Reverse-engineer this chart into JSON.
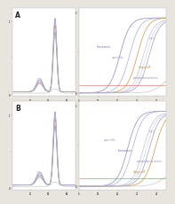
{
  "panel_A_label": "A",
  "panel_B_label": "B",
  "background_color": "#e8e4de",
  "plot_bg_color": "#ffffff",
  "colors": {
    "hexamer": "#8888cc",
    "specific": "#aaaadd",
    "oligo_dT": "#d4943a",
    "pentadecamers1": "#bbbbdd",
    "pentadecamers2": "#ccccee",
    "pentadecamers3": "#9999bb",
    "NTC": "#bbb8b4",
    "threshold": "#d86050"
  }
}
